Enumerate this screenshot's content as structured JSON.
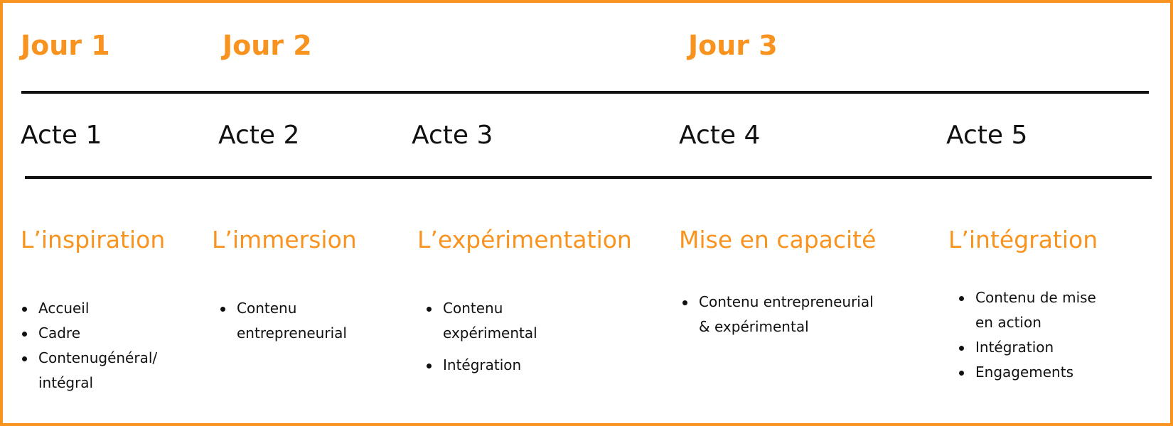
{
  "colors": {
    "accent": "#F7931E",
    "text": "#111111"
  },
  "jours": [
    "Jour 1",
    "Jour 2",
    "Jour 3"
  ],
  "columns": [
    {
      "acte": "Acte 1",
      "title": "L’inspiration",
      "items": [
        "Accueil",
        "Cadre",
        "Contenugénéral/\nintégral"
      ]
    },
    {
      "acte": "Acte 2",
      "title": "L’immersion",
      "items": [
        "Contenu\nentrepreneurial"
      ]
    },
    {
      "acte": "Acte 3",
      "title": "L’expérimentation",
      "items": [
        "Contenu\nexpérimental",
        "Intégration"
      ]
    },
    {
      "acte": "Acte 4",
      "title": "Mise en capacité",
      "items": [
        "Contenu entrepreneurial\n& expérimental"
      ]
    },
    {
      "acte": "Acte 5",
      "title": "L’intégration",
      "items": [
        "Contenu de mise\nen action",
        "Intégration",
        "Engagements"
      ]
    }
  ]
}
